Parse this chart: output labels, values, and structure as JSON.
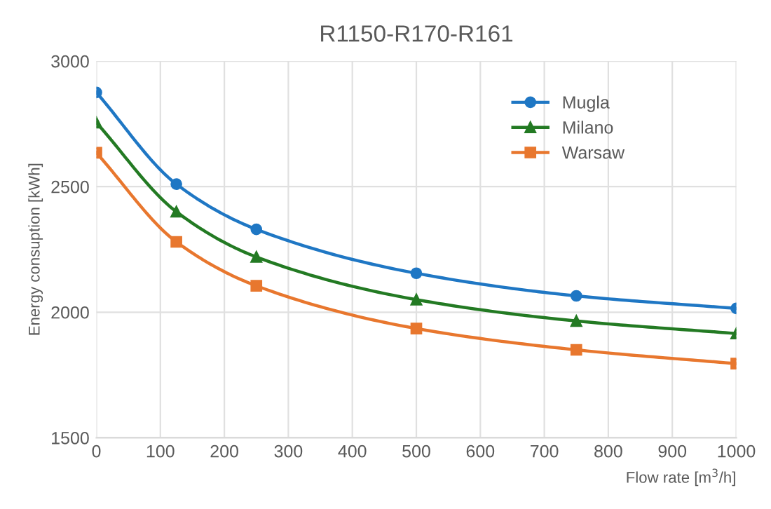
{
  "chart_data": {
    "type": "line",
    "title": "R1150-R170-R161",
    "xlabel": "Flow rate [m$^{3}$/h]",
    "ylabel": "Energy consuption [kWh]",
    "x": [
      0,
      125,
      250,
      500,
      750,
      1000
    ],
    "series": [
      {
        "name": "Mugla",
        "color": "#1f77c4",
        "marker": "circle",
        "values": [
          2875,
          2510,
          2330,
          2155,
          2065,
          2015
        ]
      },
      {
        "name": "Milano",
        "color": "#237a23",
        "marker": "triangle",
        "values": [
          2755,
          2400,
          2220,
          2050,
          1965,
          1915
        ]
      },
      {
        "name": "Warsaw",
        "color": "#e8772e",
        "marker": "square",
        "values": [
          2635,
          2280,
          2105,
          1935,
          1850,
          1795
        ]
      }
    ],
    "xlim": [
      0,
      1000
    ],
    "xticks": [
      0,
      100,
      200,
      300,
      400,
      500,
      600,
      700,
      800,
      900,
      1000
    ],
    "ylim": [
      1500,
      3000
    ],
    "yticks": [
      1500,
      2000,
      2500,
      3000
    ],
    "grid": true,
    "legend": "top right",
    "line_style": "solid"
  }
}
